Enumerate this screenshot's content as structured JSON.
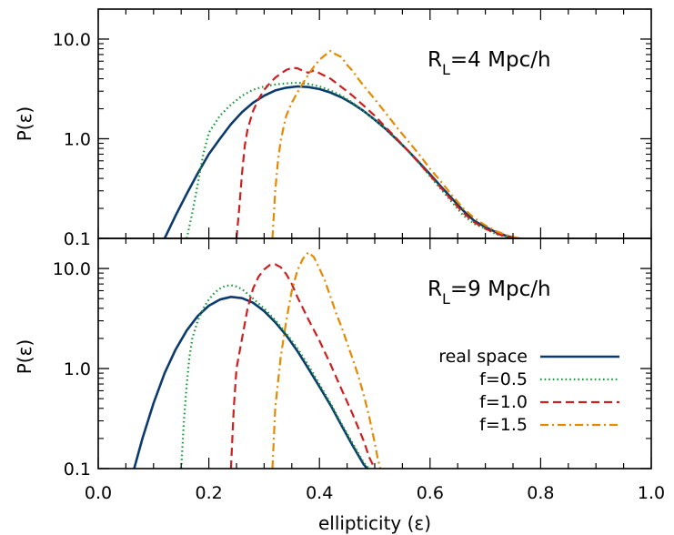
{
  "chart_data": [
    {
      "type": "line",
      "panel": "top",
      "ylabel": "P(ε)",
      "xlim": [
        0.0,
        1.0
      ],
      "ylim": [
        0.1,
        20.0
      ],
      "yscale": "log",
      "annotation": {
        "main": "R",
        "sub": "L",
        "rest": "=4  Mpc/h"
      },
      "series": [
        {
          "id": "real",
          "color": "#0b3b6e",
          "dash": "solid",
          "x": [
            0.12,
            0.14,
            0.16,
            0.18,
            0.2,
            0.22,
            0.24,
            0.26,
            0.28,
            0.3,
            0.32,
            0.34,
            0.36,
            0.38,
            0.4,
            0.42,
            0.44,
            0.46,
            0.48,
            0.5,
            0.52,
            0.54,
            0.56,
            0.58,
            0.6,
            0.62,
            0.64,
            0.66,
            0.68,
            0.7,
            0.72,
            0.74,
            0.76,
            0.77
          ],
          "y": [
            0.1,
            0.17,
            0.28,
            0.45,
            0.7,
            1.0,
            1.4,
            1.85,
            2.3,
            2.7,
            3.05,
            3.25,
            3.35,
            3.3,
            3.15,
            2.9,
            2.6,
            2.25,
            1.9,
            1.55,
            1.25,
            0.98,
            0.76,
            0.58,
            0.44,
            0.33,
            0.25,
            0.19,
            0.15,
            0.13,
            0.115,
            0.105,
            0.1,
            0.098
          ]
        },
        {
          "id": "f05",
          "color": "#1a9a3a",
          "dash": "dotted",
          "x": [
            0.16,
            0.17,
            0.18,
            0.19,
            0.2,
            0.22,
            0.24,
            0.26,
            0.28,
            0.3,
            0.32,
            0.34,
            0.36,
            0.38,
            0.4,
            0.42,
            0.44,
            0.46,
            0.48,
            0.5,
            0.52,
            0.54,
            0.56,
            0.58,
            0.6,
            0.62,
            0.64,
            0.66,
            0.68,
            0.7,
            0.72,
            0.74,
            0.76
          ],
          "y": [
            0.1,
            0.18,
            0.35,
            0.7,
            1.15,
            1.7,
            2.2,
            2.7,
            3.1,
            3.35,
            3.5,
            3.6,
            3.65,
            3.55,
            3.35,
            3.05,
            2.7,
            2.3,
            1.9,
            1.55,
            1.25,
            0.98,
            0.76,
            0.57,
            0.42,
            0.31,
            0.23,
            0.17,
            0.14,
            0.125,
            0.11,
            0.103,
            0.1
          ]
        },
        {
          "id": "f10",
          "color": "#cc1f1f",
          "dash": "dashed",
          "x": [
            0.25,
            0.255,
            0.26,
            0.265,
            0.27,
            0.28,
            0.29,
            0.3,
            0.31,
            0.32,
            0.33,
            0.34,
            0.35,
            0.36,
            0.37,
            0.38,
            0.39,
            0.4,
            0.42,
            0.44,
            0.46,
            0.48,
            0.5,
            0.52,
            0.54,
            0.56,
            0.58,
            0.6,
            0.62,
            0.64,
            0.66,
            0.68,
            0.7,
            0.72,
            0.74,
            0.75
          ],
          "y": [
            0.1,
            0.2,
            0.45,
            0.85,
            1.25,
            1.9,
            2.5,
            3.1,
            3.6,
            4.1,
            4.5,
            4.9,
            5.15,
            5.1,
            4.8,
            4.6,
            4.85,
            4.55,
            4.0,
            3.3,
            2.7,
            2.15,
            1.7,
            1.3,
            1.0,
            0.76,
            0.57,
            0.43,
            0.32,
            0.24,
            0.18,
            0.145,
            0.125,
            0.112,
            0.103,
            0.1
          ]
        },
        {
          "id": "f15",
          "color": "#e58a00",
          "dash": "dashdot",
          "x": [
            0.315,
            0.32,
            0.325,
            0.33,
            0.335,
            0.34,
            0.35,
            0.36,
            0.37,
            0.38,
            0.39,
            0.4,
            0.41,
            0.42,
            0.43,
            0.44,
            0.45,
            0.46,
            0.47,
            0.48,
            0.5,
            0.52,
            0.54,
            0.56,
            0.58,
            0.6,
            0.62,
            0.64,
            0.66,
            0.68,
            0.7,
            0.72,
            0.74,
            0.76
          ],
          "y": [
            0.1,
            0.3,
            0.6,
            0.95,
            1.3,
            1.7,
            2.3,
            2.9,
            3.6,
            4.4,
            5.3,
            6.2,
            6.9,
            7.6,
            7.0,
            6.6,
            5.5,
            4.8,
            4.0,
            3.4,
            2.5,
            1.8,
            1.3,
            0.95,
            0.7,
            0.5,
            0.37,
            0.27,
            0.2,
            0.16,
            0.135,
            0.118,
            0.107,
            0.1
          ]
        }
      ]
    },
    {
      "type": "line",
      "panel": "bottom",
      "ylabel": "P(ε)",
      "xlabel": "ellipticity (ε)",
      "xlim": [
        0.0,
        1.0
      ],
      "ylim": [
        0.1,
        20.0
      ],
      "yscale": "log",
      "xticks": [
        "0.0",
        "0.2",
        "0.4",
        "0.6",
        "0.8",
        "1.0"
      ],
      "yticks": [
        "0.1",
        "1.0",
        "10.0"
      ],
      "annotation": {
        "main": "R",
        "sub": "L",
        "rest": "=9  Mpc/h"
      },
      "legend": {
        "placement": "lower-right",
        "entries": [
          {
            "id": "real",
            "label": "real space"
          },
          {
            "id": "f05",
            "label": "f=0.5"
          },
          {
            "id": "f10",
            "label": "f=1.0"
          },
          {
            "id": "f15",
            "label": "f=1.5"
          }
        ]
      },
      "series": [
        {
          "id": "real",
          "color": "#0b3b6e",
          "dash": "solid",
          "x": [
            0.065,
            0.08,
            0.1,
            0.12,
            0.14,
            0.16,
            0.18,
            0.2,
            0.22,
            0.24,
            0.26,
            0.28,
            0.3,
            0.32,
            0.34,
            0.36,
            0.38,
            0.4,
            0.42,
            0.44,
            0.46,
            0.48,
            0.49
          ],
          "y": [
            0.1,
            0.2,
            0.45,
            0.9,
            1.55,
            2.4,
            3.35,
            4.25,
            4.9,
            5.2,
            5.05,
            4.55,
            3.75,
            2.9,
            2.15,
            1.5,
            1.0,
            0.66,
            0.43,
            0.27,
            0.17,
            0.11,
            0.095
          ]
        },
        {
          "id": "f05",
          "color": "#1a9a3a",
          "dash": "dotted",
          "x": [
            0.15,
            0.155,
            0.16,
            0.165,
            0.17,
            0.18,
            0.19,
            0.2,
            0.21,
            0.22,
            0.23,
            0.24,
            0.25,
            0.26,
            0.27,
            0.28,
            0.3,
            0.32,
            0.34,
            0.36,
            0.38,
            0.4,
            0.42,
            0.44,
            0.46,
            0.48,
            0.49
          ],
          "y": [
            0.1,
            0.3,
            0.7,
            1.3,
            2.0,
            3.0,
            4.0,
            4.9,
            5.7,
            6.3,
            6.7,
            6.8,
            6.6,
            6.2,
            5.6,
            5.0,
            4.0,
            3.05,
            2.25,
            1.6,
            1.08,
            0.7,
            0.45,
            0.28,
            0.18,
            0.115,
            0.1
          ]
        },
        {
          "id": "f10",
          "color": "#cc1f1f",
          "dash": "dashed",
          "x": [
            0.24,
            0.245,
            0.25,
            0.26,
            0.27,
            0.28,
            0.29,
            0.3,
            0.31,
            0.32,
            0.33,
            0.34,
            0.35,
            0.36,
            0.38,
            0.4,
            0.42,
            0.44,
            0.46,
            0.48,
            0.49,
            0.5
          ],
          "y": [
            0.1,
            0.4,
            1.0,
            2.0,
            4.0,
            6.3,
            8.3,
            9.8,
            10.8,
            11.0,
            10.3,
            8.8,
            7.0,
            5.2,
            3.1,
            1.9,
            1.1,
            0.62,
            0.35,
            0.19,
            0.13,
            0.1
          ]
        },
        {
          "id": "f15",
          "color": "#e58a00",
          "dash": "dashdot",
          "x": [
            0.315,
            0.32,
            0.33,
            0.34,
            0.35,
            0.36,
            0.37,
            0.38,
            0.39,
            0.4,
            0.41,
            0.42,
            0.43,
            0.44,
            0.45,
            0.46,
            0.47,
            0.48,
            0.49,
            0.5,
            0.505,
            0.51
          ],
          "y": [
            0.1,
            0.4,
            1.3,
            3.0,
            6.0,
            9.5,
            12.5,
            14.5,
            13.0,
            10.0,
            7.5,
            5.2,
            3.6,
            2.6,
            1.8,
            1.25,
            0.85,
            0.55,
            0.33,
            0.18,
            0.13,
            0.1
          ]
        }
      ]
    }
  ]
}
